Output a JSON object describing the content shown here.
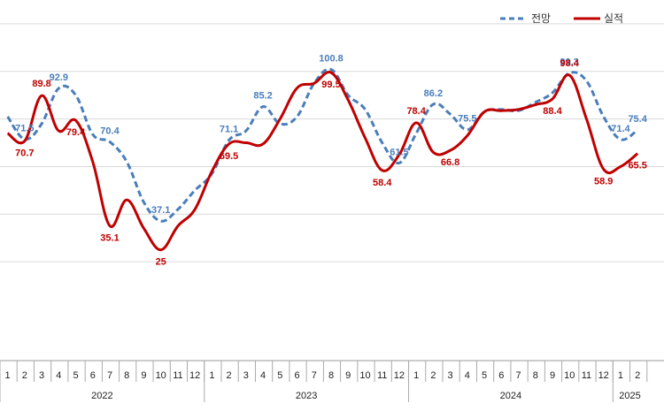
{
  "chart_data": {
    "type": "line",
    "ylim": [
      0,
      130
    ],
    "grid": true,
    "legend_position": "top-right",
    "colors": {
      "forecast": "#4a7ebb",
      "actual": "#c00000"
    },
    "x": [
      {
        "month": "1",
        "year": "2022"
      },
      {
        "month": "2",
        "year": "2022"
      },
      {
        "month": "3",
        "year": "2022"
      },
      {
        "month": "4",
        "year": "2022"
      },
      {
        "month": "5",
        "year": "2022"
      },
      {
        "month": "6",
        "year": "2022"
      },
      {
        "month": "7",
        "year": "2022"
      },
      {
        "month": "8",
        "year": "2022"
      },
      {
        "month": "9",
        "year": "2022"
      },
      {
        "month": "10",
        "year": "2022"
      },
      {
        "month": "11",
        "year": "2022"
      },
      {
        "month": "12",
        "year": "2022"
      },
      {
        "month": "1",
        "year": "2023"
      },
      {
        "month": "2",
        "year": "2023"
      },
      {
        "month": "3",
        "year": "2023"
      },
      {
        "month": "4",
        "year": "2023"
      },
      {
        "month": "5",
        "year": "2023"
      },
      {
        "month": "6",
        "year": "2023"
      },
      {
        "month": "7",
        "year": "2023"
      },
      {
        "month": "8",
        "year": "2023"
      },
      {
        "month": "9",
        "year": "2023"
      },
      {
        "month": "10",
        "year": "2023"
      },
      {
        "month": "11",
        "year": "2023"
      },
      {
        "month": "12",
        "year": "2023"
      },
      {
        "month": "1",
        "year": "2024"
      },
      {
        "month": "2",
        "year": "2024"
      },
      {
        "month": "3",
        "year": "2024"
      },
      {
        "month": "4",
        "year": "2024"
      },
      {
        "month": "5",
        "year": "2024"
      },
      {
        "month": "6",
        "year": "2024"
      },
      {
        "month": "7",
        "year": "2024"
      },
      {
        "month": "8",
        "year": "2024"
      },
      {
        "month": "9",
        "year": "2024"
      },
      {
        "month": "10",
        "year": "2024"
      },
      {
        "month": "11",
        "year": "2024"
      },
      {
        "month": "12",
        "year": "2024"
      },
      {
        "month": "1",
        "year": "2025"
      },
      {
        "month": "2",
        "year": "2025"
      }
    ],
    "years": [
      "2022",
      "2023",
      "2024",
      "2025"
    ],
    "series": [
      {
        "name": "전망",
        "key": "forecast",
        "style": "dashed",
        "values": [
          81,
          71.5,
          78,
          92.9,
          90,
          73.5,
          70.4,
          62,
          45,
          37.1,
          42,
          50,
          57,
          71.1,
          75,
          85.2,
          78,
          81,
          95,
          100.8,
          90,
          84,
          70,
          61.5,
          74,
          86.2,
          82,
          75.5,
          83,
          84,
          83.5,
          87,
          91,
          99.3,
          96,
          81,
          71.4,
          75.4
        ],
        "labels": [
          {
            "i": 1,
            "text": "71.5"
          },
          {
            "i": 3,
            "text": "92.9"
          },
          {
            "i": 6,
            "text": "70.4"
          },
          {
            "i": 9,
            "text": "37.1"
          },
          {
            "i": 13,
            "text": "71.1"
          },
          {
            "i": 15,
            "text": "85.2"
          },
          {
            "i": 19,
            "text": "100.8"
          },
          {
            "i": 23,
            "text": "61.5"
          },
          {
            "i": 25,
            "text": "86.2"
          },
          {
            "i": 27,
            "text": "75.5"
          },
          {
            "i": 33,
            "text": "99.3"
          },
          {
            "i": 36,
            "text": "71.4"
          },
          {
            "i": 37,
            "text": "75.4"
          }
        ]
      },
      {
        "name": "실적",
        "key": "actual",
        "style": "solid",
        "values": [
          74,
          70.7,
          89.8,
          75,
          79.4,
          62,
          35.1,
          46,
          34,
          25,
          35,
          42,
          58,
          69.5,
          70,
          69.5,
          80,
          93,
          95,
          99.5,
          88,
          72,
          58.4,
          65,
          78.4,
          66,
          66.8,
          73,
          83,
          83.5,
          84,
          86,
          88.4,
          98.4,
          80,
          58.9,
          60,
          65.5
        ],
        "labels": [
          {
            "i": 1,
            "text": "70.7"
          },
          {
            "i": 2,
            "text": "89.8"
          },
          {
            "i": 4,
            "text": "79.4"
          },
          {
            "i": 6,
            "text": "35.1"
          },
          {
            "i": 9,
            "text": "25"
          },
          {
            "i": 13,
            "text": "69.5"
          },
          {
            "i": 19,
            "text": "99.5"
          },
          {
            "i": 22,
            "text": "58.4"
          },
          {
            "i": 24,
            "text": "78.4"
          },
          {
            "i": 26,
            "text": "66.8"
          },
          {
            "i": 32,
            "text": "88.4"
          },
          {
            "i": 33,
            "text": "98.4"
          },
          {
            "i": 35,
            "text": "58.9"
          },
          {
            "i": 37,
            "text": "65.5"
          }
        ]
      }
    ]
  }
}
